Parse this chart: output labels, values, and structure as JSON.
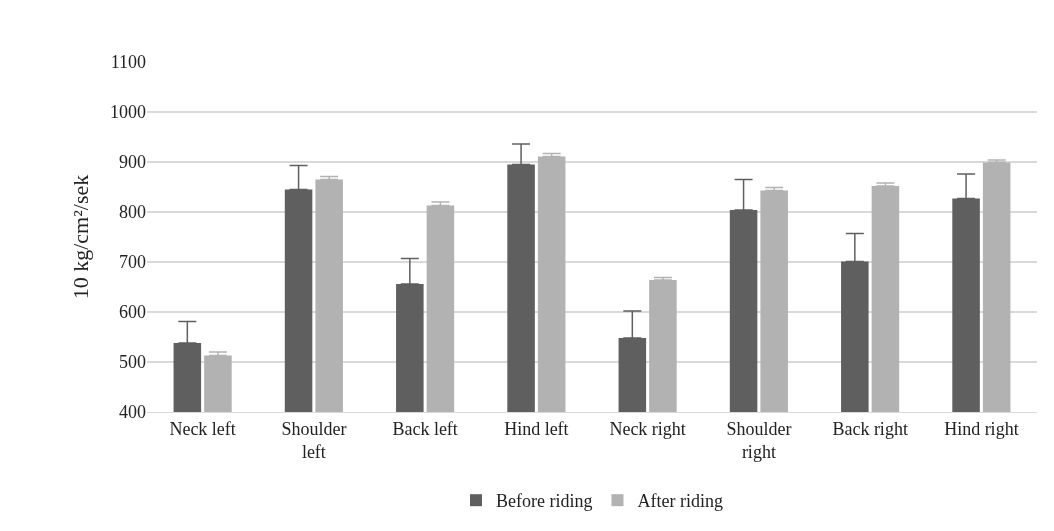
{
  "chart_data": {
    "type": "bar",
    "ylabel": "10 kg/cm²/sek",
    "categories": [
      "Neck left",
      "Shoulder left",
      "Back left",
      "Hind left",
      "Neck right",
      "Shoulder right",
      "Back right",
      "Hind right"
    ],
    "series": [
      {
        "name": "Before riding",
        "color": "#5f5f5f",
        "values": [
          538,
          845,
          656,
          895,
          548,
          804,
          701,
          827
        ],
        "errors": [
          [
            538,
            581
          ],
          [
            845,
            893
          ],
          [
            656,
            707
          ],
          [
            895,
            936
          ],
          [
            548,
            602
          ],
          [
            804,
            865
          ],
          [
            701,
            757
          ],
          [
            827,
            876
          ]
        ]
      },
      {
        "name": "After riding",
        "color": "#b2b2b2",
        "values": [
          513,
          865,
          813,
          911,
          664,
          843,
          852,
          899
        ],
        "errors": [
          [
            513,
            520
          ],
          [
            865,
            871
          ],
          [
            813,
            820
          ],
          [
            911,
            917
          ],
          [
            664,
            669
          ],
          [
            843,
            849
          ],
          [
            852,
            858
          ],
          [
            899,
            904
          ]
        ]
      }
    ],
    "ylim": [
      400,
      1100
    ],
    "yticks": [
      400,
      500,
      600,
      700,
      800,
      900,
      1000,
      1100
    ],
    "grid": "y",
    "legend": "bottom"
  }
}
